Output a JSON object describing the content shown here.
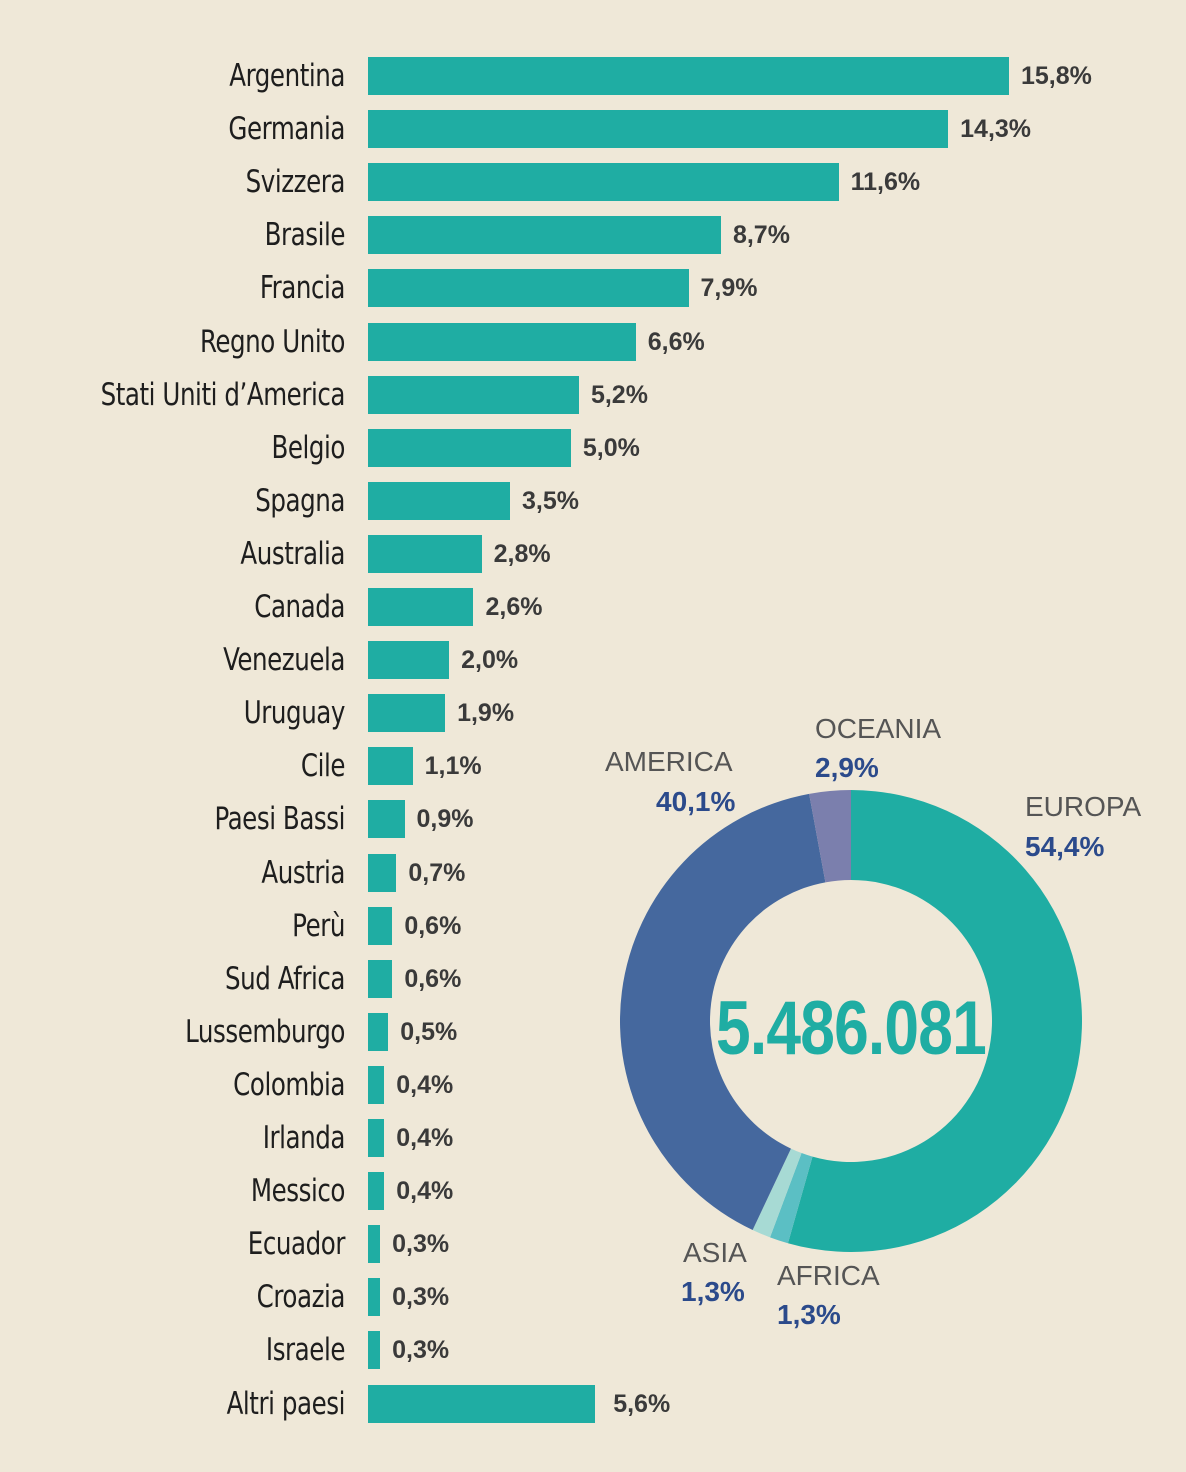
{
  "chart_data": [
    {
      "type": "bar",
      "orientation": "horizontal",
      "title": "",
      "xlabel": "",
      "ylabel": "",
      "categories": [
        "Argentina",
        "Germania",
        "Svizzera",
        "Brasile",
        "Francia",
        "Regno Unito",
        "Stati Uniti d’America",
        "Belgio",
        "Spagna",
        "Australia",
        "Canada",
        "Venezuela",
        "Uruguay",
        "Cile",
        "Paesi Bassi",
        "Austria",
        "Perù",
        "Sud Africa",
        "Lussemburgo",
        "Colombia",
        "Irlanda",
        "Messico",
        "Ecuador",
        "Croazia",
        "Israele",
        "Altri paesi"
      ],
      "values": [
        15.8,
        14.3,
        11.6,
        8.7,
        7.9,
        6.6,
        5.2,
        5.0,
        3.5,
        2.8,
        2.6,
        2.0,
        1.9,
        1.1,
        0.9,
        0.7,
        0.6,
        0.6,
        0.5,
        0.4,
        0.4,
        0.4,
        0.3,
        0.3,
        0.3,
        5.6
      ],
      "value_labels": [
        "15,8%",
        "14,3%",
        "11,6%",
        "8,7%",
        "7,9%",
        "6,6%",
        "5,2%",
        "5,0%",
        "3,5%",
        "2,8%",
        "2,6%",
        "2,0%",
        "1,9%",
        "1,1%",
        "0,9%",
        "0,7%",
        "0,6%",
        "0,6%",
        "0,5%",
        "0,4%",
        "0,4%",
        "0,4%",
        "0,3%",
        "0,3%",
        "0,3%",
        "5,6%"
      ],
      "color": "#1fada3",
      "grid": false
    },
    {
      "type": "pie",
      "donut": true,
      "center_label": "5.486.081",
      "categories": [
        "EUROPA",
        "AFRICA",
        "ASIA",
        "AMERICA",
        "OCEANIA"
      ],
      "values": [
        54.4,
        1.3,
        1.3,
        40.1,
        2.9
      ],
      "value_labels": [
        "54,4%",
        "1,3%",
        "1,3%",
        "40,1%",
        "2,9%"
      ],
      "colors": [
        "#1fada3",
        "#5bbfc4",
        "#a7dad4",
        "#45689e",
        "#7b7fad"
      ]
    }
  ],
  "donut_labels": {
    "europa": {
      "name": "EUROPA",
      "value": "54,4%"
    },
    "africa": {
      "name": "AFRICA",
      "value": "1,3%"
    },
    "asia": {
      "name": "ASIA",
      "value": "1,3%"
    },
    "america": {
      "name": "AMERICA",
      "value": "40,1%"
    },
    "oceania": {
      "name": "OCEANIA",
      "value": "2,9%"
    }
  }
}
